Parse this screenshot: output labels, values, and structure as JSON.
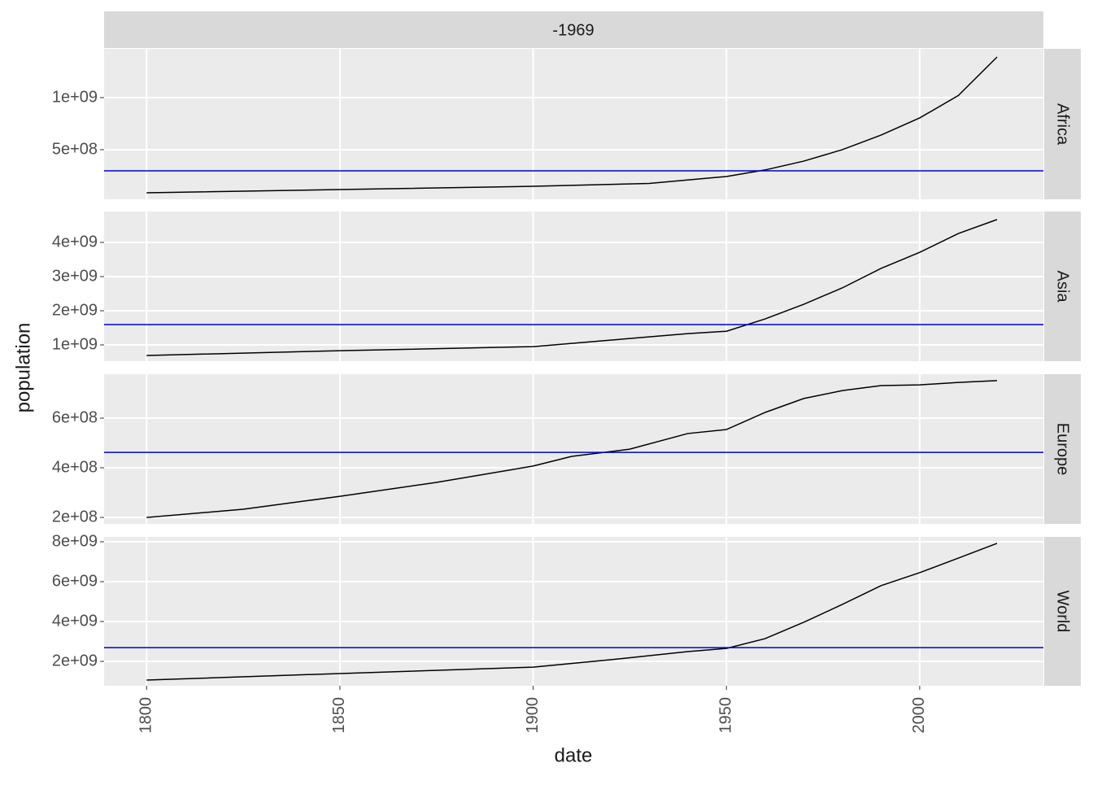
{
  "strip": "-1969",
  "x_label": "date",
  "y_label": "population",
  "chart_data": [
    {
      "type": "line",
      "facet": "Africa",
      "color": "#000000",
      "hline": 297000000,
      "hline_color": "#0000cc",
      "x": [
        1800,
        1850,
        1900,
        1930,
        1950,
        1960,
        1970,
        1980,
        1990,
        2000,
        2010,
        2020
      ],
      "values": [
        86000000,
        117000000,
        148000000,
        175000000,
        242000000,
        305000000,
        390000000,
        500000000,
        640000000,
        805000000,
        1020000000,
        1390000000
      ],
      "xlim": [
        1789,
        2032
      ],
      "xticks": [
        1800,
        1850,
        1900,
        1950,
        2000
      ],
      "ylim": [
        23000000,
        1469000000
      ],
      "yticks": [
        {
          "value": 500000000,
          "label": "5e+08"
        },
        {
          "value": 1000000000,
          "label": "1e+09"
        }
      ],
      "grid": true
    },
    {
      "type": "line",
      "facet": "Asia",
      "color": "#000000",
      "hline": 1595000000,
      "hline_color": "#0000cc",
      "x": [
        1800,
        1850,
        1900,
        1920,
        1940,
        1950,
        1960,
        1970,
        1980,
        1990,
        2000,
        2010,
        2020
      ],
      "values": [
        690000000,
        830000000,
        950000000,
        1140000000,
        1330000000,
        1400000000,
        1760000000,
        2190000000,
        2670000000,
        3240000000,
        3710000000,
        4260000000,
        4670000000
      ],
      "xlim": [
        1789,
        2032
      ],
      "xticks": [
        1800,
        1850,
        1900,
        1950,
        2000
      ],
      "ylim": [
        524000000,
        4905000000
      ],
      "yticks": [
        {
          "value": 1000000000,
          "label": "1e+09"
        },
        {
          "value": 2000000000,
          "label": "2e+09"
        },
        {
          "value": 3000000000,
          "label": "3e+09"
        },
        {
          "value": 4000000000,
          "label": "4e+09"
        }
      ],
      "grid": true
    },
    {
      "type": "line",
      "facet": "Europe",
      "color": "#000000",
      "hline": 462000000,
      "hline_color": "#0000cc",
      "x": [
        1800,
        1825,
        1850,
        1875,
        1900,
        1910,
        1925,
        1940,
        1950,
        1960,
        1970,
        1980,
        1990,
        2000,
        2010,
        2020
      ],
      "values": [
        200000000,
        233000000,
        285000000,
        341000000,
        407000000,
        446000000,
        475000000,
        538000000,
        554000000,
        623000000,
        679000000,
        711000000,
        731000000,
        734000000,
        744000000,
        751000000
      ],
      "xlim": [
        1789,
        2032
      ],
      "xticks": [
        1800,
        1850,
        1900,
        1950,
        2000
      ],
      "ylim": [
        174000000,
        777000000
      ],
      "yticks": [
        {
          "value": 200000000,
          "label": "2e+08"
        },
        {
          "value": 400000000,
          "label": "4e+08"
        },
        {
          "value": 600000000,
          "label": "6e+08"
        }
      ],
      "grid": true
    },
    {
      "type": "line",
      "facet": "World",
      "color": "#000000",
      "hline": 2690000000,
      "hline_color": "#0000cc",
      "x": [
        1800,
        1850,
        1900,
        1920,
        1940,
        1950,
        1960,
        1970,
        1980,
        1990,
        2000,
        2010,
        2020
      ],
      "values": [
        1060000000,
        1390000000,
        1710000000,
        2080000000,
        2490000000,
        2650000000,
        3140000000,
        3960000000,
        4860000000,
        5800000000,
        6450000000,
        7180000000,
        7920000000
      ],
      "xlim": [
        1789,
        2032
      ],
      "xticks": [
        1800,
        1850,
        1900,
        1950,
        2000
      ],
      "ylim": [
        776000000,
        8245000000
      ],
      "yticks": [
        {
          "value": 2000000000,
          "label": "2e+09"
        },
        {
          "value": 4000000000,
          "label": "4e+09"
        },
        {
          "value": 6000000000,
          "label": "6e+09"
        },
        {
          "value": 8000000000,
          "label": "8e+09"
        }
      ],
      "grid": true
    }
  ]
}
